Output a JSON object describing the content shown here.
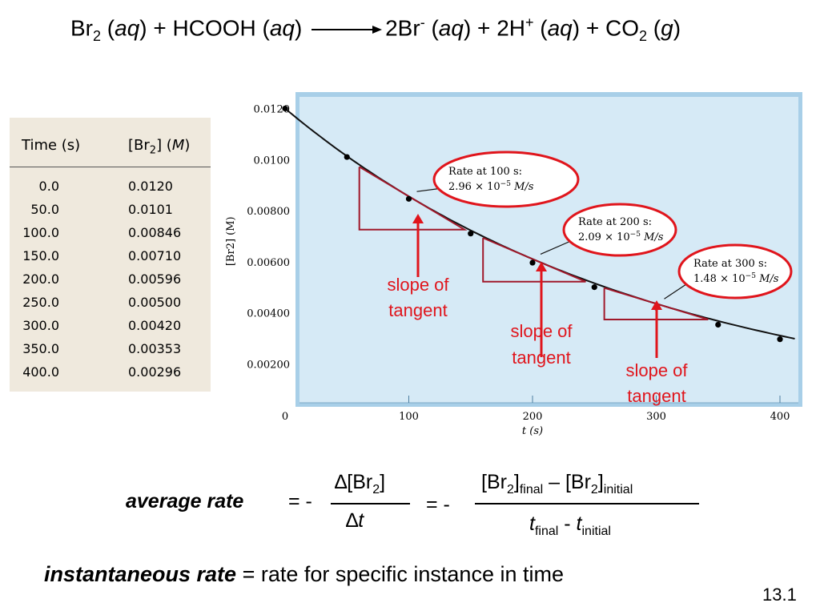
{
  "equation": {
    "br2": "Br",
    "br2_sub": "2",
    "br2_phase_open": " (",
    "br2_phase": "aq",
    "br2_phase_close": ")",
    "plus1": " + HCOOH (",
    "hcooh_phase": "aq",
    "hcooh_close": ")",
    "br_minus": "2Br",
    "br_minus_sup": "-",
    "br_phase_open": " (",
    "br_phase": "aq",
    "br_phase_close": ")",
    "plus2": " + 2H",
    "h_sup": "+",
    "h_phase_open": " (",
    "h_phase": "aq",
    "h_phase_close": ")",
    "plus3": " + CO",
    "co2_sub": "2",
    "co2_phase_open": " (",
    "co2_phase": "g",
    "co2_phase_close": ")"
  },
  "table": {
    "col1_header": "Time (s)",
    "col2_header_pre": "[Br",
    "col2_header_sub": "2",
    "col2_header_mid": "] (",
    "col2_header_unit": "M",
    "col2_header_close": ")",
    "rows": [
      {
        "time": "0.0",
        "conc": "0.0120"
      },
      {
        "time": "50.0",
        "conc": "0.0101"
      },
      {
        "time": "100.0",
        "conc": "0.00846"
      },
      {
        "time": "150.0",
        "conc": "0.00710"
      },
      {
        "time": "200.0",
        "conc": "0.00596"
      },
      {
        "time": "250.0",
        "conc": "0.00500"
      },
      {
        "time": "300.0",
        "conc": "0.00420"
      },
      {
        "time": "350.0",
        "conc": "0.00353"
      },
      {
        "time": "400.0",
        "conc": "0.00296"
      }
    ]
  },
  "chart_data": {
    "type": "line",
    "xlabel": "t (s)",
    "ylabel": "[Br2] (M)",
    "xlim": [
      0,
      400
    ],
    "ylim": [
      0,
      0.0128
    ],
    "x_ticks": [
      "0",
      "100",
      "200",
      "300",
      "400"
    ],
    "y_ticks": [
      "0.0120",
      "0.0100",
      "0.00800",
      "0.00600",
      "0.00400",
      "0.00200"
    ],
    "x": [
      0,
      50,
      100,
      150,
      200,
      250,
      300,
      350,
      400
    ],
    "y": [
      0.012,
      0.0101,
      0.00846,
      0.0071,
      0.00596,
      0.005,
      0.0042,
      0.00353,
      0.00296
    ],
    "tangents": [
      {
        "t": 100,
        "rate_label": "Rate at 100 s:",
        "rate_value": "2.96 × 10",
        "rate_exp": "−5",
        "rate_unit": " M/s",
        "slope_label_1": "slope of",
        "slope_label_2": "tangent"
      },
      {
        "t": 200,
        "rate_label": "Rate at 200 s:",
        "rate_value": "2.09 × 10",
        "rate_exp": "−5",
        "rate_unit": " M/s",
        "slope_label_1": "slope of",
        "slope_label_2": "tangent"
      },
      {
        "t": 300,
        "rate_label": "Rate at 300 s:",
        "rate_value": "1.48 × 10",
        "rate_exp": "−5",
        "rate_unit": " M/s",
        "slope_label_1": "slope of",
        "slope_label_2": "tangent"
      }
    ],
    "colors": {
      "plot_bg": "#d6eaf6",
      "frame": "#a8cfe8",
      "tangent": "#a0182a",
      "highlight": "#e0151c"
    }
  },
  "formula": {
    "avg_label": "average rate",
    "eq1": " = -",
    "delta_br": "∆[Br",
    "delta_br_sub": "2",
    "delta_br_close": "]",
    "delta_t": "∆",
    "delta_t_var": "t",
    "eq2": "= -",
    "num_a": "[Br",
    "num_a_sub": "2",
    "num_a_close": "]",
    "num_a_sub2": "final",
    "num_minus": " – [Br",
    "num_b_sub": "2",
    "num_b_close": "]",
    "num_b_sub2": "initial",
    "den_t1": "t",
    "den_t1_sub": "final",
    "den_minus": " - ",
    "den_t2": "t",
    "den_t2_sub": "initial"
  },
  "instantaneous": {
    "label": "instantaneous rate",
    "text": " = rate for specific instance in time"
  },
  "slide_number": "13.1"
}
